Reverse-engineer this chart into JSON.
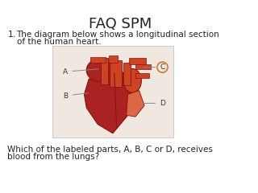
{
  "title": "FAQ SPM",
  "title_fontsize": 13,
  "bg_color": "#ffffff",
  "question_number": "1.",
  "question_line1": "The diagram below shows a longitudinal section",
  "question_line2": "of the human heart.",
  "question_fontsize": 7.5,
  "followup_line1": "Which of the labeled parts, A, B, C or D, receives",
  "followup_line2": "blood from the lungs?",
  "followup_fontsize": 7.5,
  "text_color": "#222222",
  "heart_bg": "#f0e8e0",
  "heart_dark": "#aa2222",
  "heart_mid": "#cc4422",
  "heart_light": "#dd6644",
  "heart_outline": "#881111",
  "circle_color": "#e07820",
  "label_color": "#333333",
  "line_color": "#888888"
}
